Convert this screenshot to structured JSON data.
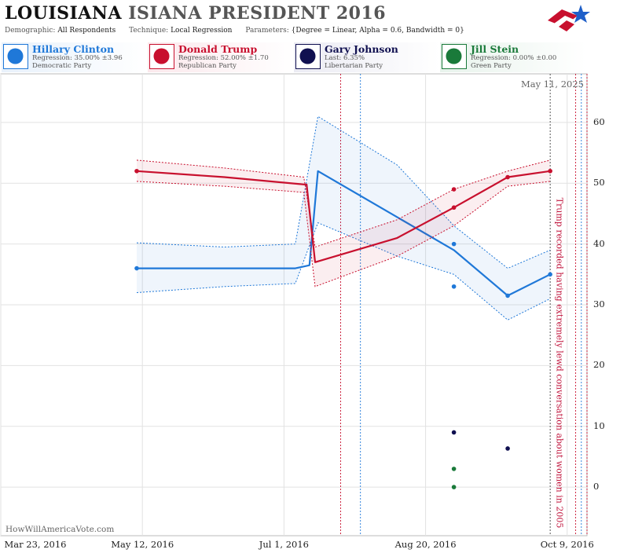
{
  "header": {
    "title_state": "LOUISIANA",
    "title_rest": "ISIANA PRESIDENT 2016",
    "demographic_label": "Demographic:",
    "demographic_value": "All Respondents",
    "technique_label": "Technique:",
    "technique_value": "Local Regression",
    "parameters_label": "Parameters:",
    "parameters_value": "{Degree = Linear, Alpha = 0.6, Bandwidth = 0}"
  },
  "candidates": [
    {
      "name": "Hillary Clinton",
      "line1": "Regression: 35.00% ±3.96",
      "line2": "Democratic Party",
      "color": "#1f78d8",
      "icon": "donkey-icon"
    },
    {
      "name": "Donald Trump",
      "line1": "Regression: 52.00% ±1.70",
      "line2": "Republican Party",
      "color": "#c8102e",
      "icon": "elephant-icon"
    },
    {
      "name": "Gary Johnson",
      "line1": "Last: 6.35%",
      "line2": "Libertarian Party",
      "color": "#101050",
      "icon": "liberty-icon"
    },
    {
      "name": "Jill Stein",
      "line1": "Regression: 0.00% ±0.00",
      "line2": "Green Party",
      "color": "#1a7a3a",
      "icon": "flower-icon"
    }
  ],
  "watermark": "HowWillAmericaVote.com",
  "datestamp": "May 11, 2025",
  "annotation": "Trump recorded having extremely lewd conversation about women in 2005",
  "chart_data": {
    "type": "line",
    "title": "LOUISIANA ISIANA PRESIDENT 2016",
    "xlabel": "",
    "ylabel": "",
    "xlim": [
      "2016-03-23",
      "2016-10-16"
    ],
    "ylim": [
      -8,
      68
    ],
    "x_ticks": [
      "Mar 23, 2016",
      "May 12, 2016",
      "Jul 1, 2016",
      "Aug 20, 2016",
      "Oct 9, 2016"
    ],
    "y_ticks": [
      0,
      10,
      20,
      30,
      40,
      50,
      60
    ],
    "grid": true,
    "series": [
      {
        "name": "Hillary Clinton",
        "color": "#1f78d8",
        "line": [
          [
            "2016-05-10",
            36
          ],
          [
            "2016-06-10",
            36
          ],
          [
            "2016-07-05",
            36
          ],
          [
            "2016-07-10",
            36.5
          ],
          [
            "2016-07-13",
            52
          ],
          [
            "2016-08-30",
            39
          ],
          [
            "2016-09-18",
            31.5
          ],
          [
            "2016-10-03",
            35
          ]
        ],
        "upper": [
          [
            "2016-05-10",
            40.2
          ],
          [
            "2016-06-10",
            39.5
          ],
          [
            "2016-07-05",
            40
          ],
          [
            "2016-07-13",
            61
          ],
          [
            "2016-08-10",
            53
          ],
          [
            "2016-08-30",
            43
          ],
          [
            "2016-09-18",
            36
          ],
          [
            "2016-10-03",
            39
          ]
        ],
        "lower": [
          [
            "2016-05-10",
            32
          ],
          [
            "2016-06-10",
            33
          ],
          [
            "2016-07-05",
            33.5
          ],
          [
            "2016-07-13",
            43.5
          ],
          [
            "2016-08-10",
            38
          ],
          [
            "2016-08-30",
            35
          ],
          [
            "2016-09-18",
            27.5
          ],
          [
            "2016-10-03",
            31
          ]
        ],
        "points": [
          [
            "2016-08-30",
            40
          ],
          [
            "2016-08-30",
            33
          ],
          [
            "2016-09-18",
            31.5
          ],
          [
            "2016-10-03",
            35
          ],
          [
            "2016-05-10",
            36
          ]
        ]
      },
      {
        "name": "Donald Trump",
        "color": "#c8102e",
        "line": [
          [
            "2016-05-10",
            52
          ],
          [
            "2016-06-10",
            51
          ],
          [
            "2016-07-08",
            49.8
          ],
          [
            "2016-07-09",
            49.8
          ],
          [
            "2016-07-12",
            37
          ],
          [
            "2016-08-10",
            41
          ],
          [
            "2016-08-30",
            46
          ],
          [
            "2016-09-18",
            51
          ],
          [
            "2016-10-03",
            52
          ]
        ],
        "upper": [
          [
            "2016-05-10",
            53.8
          ],
          [
            "2016-06-10",
            52.5
          ],
          [
            "2016-07-08",
            51
          ],
          [
            "2016-07-12",
            39.5
          ],
          [
            "2016-08-10",
            44
          ],
          [
            "2016-08-30",
            49
          ],
          [
            "2016-09-18",
            52
          ],
          [
            "2016-10-03",
            53.8
          ]
        ],
        "lower": [
          [
            "2016-05-10",
            50.3
          ],
          [
            "2016-06-10",
            49.5
          ],
          [
            "2016-07-08",
            48.5
          ],
          [
            "2016-07-12",
            33
          ],
          [
            "2016-08-10",
            38
          ],
          [
            "2016-08-30",
            43
          ],
          [
            "2016-09-18",
            49.5
          ],
          [
            "2016-10-03",
            50.3
          ]
        ],
        "points": [
          [
            "2016-05-10",
            52
          ],
          [
            "2016-08-30",
            49
          ],
          [
            "2016-08-30",
            46
          ],
          [
            "2016-09-18",
            51
          ],
          [
            "2016-10-03",
            52
          ]
        ]
      },
      {
        "name": "Gary Johnson",
        "color": "#101050",
        "points": [
          [
            "2016-08-30",
            9
          ],
          [
            "2016-09-18",
            6.35
          ]
        ]
      },
      {
        "name": "Jill Stein",
        "color": "#1a7a3a",
        "points": [
          [
            "2016-08-30",
            3
          ],
          [
            "2016-08-30",
            0
          ]
        ]
      }
    ],
    "event_lines": [
      {
        "date": "2016-07-21",
        "color": "#c8102e"
      },
      {
        "date": "2016-07-28",
        "color": "#1f78d8"
      },
      {
        "date": "2016-10-03",
        "color": "#444444"
      },
      {
        "date": "2016-10-12",
        "color": "#c8102e"
      },
      {
        "date": "2016-10-14",
        "color": "#1f78d8"
      },
      {
        "date": "2016-10-16",
        "color": "#c8102e"
      }
    ]
  }
}
